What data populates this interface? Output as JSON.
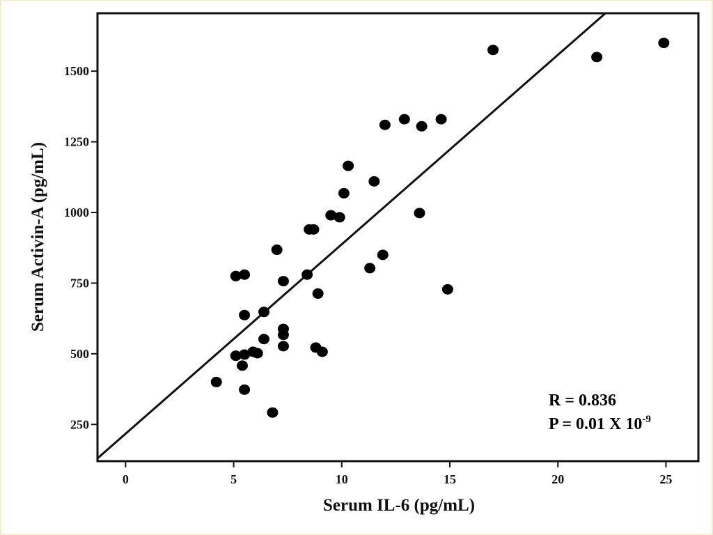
{
  "chart_data": {
    "type": "scatter",
    "xlabel": "Serum IL-6 (pg/mL)",
    "ylabel": "Serum Activin-A (pg/mL)",
    "xlim": [
      -1.3,
      26.5
    ],
    "ylim": [
      120,
      1705
    ],
    "x_ticks": [
      0,
      5,
      10,
      15,
      20,
      25
    ],
    "y_ticks": [
      250,
      500,
      750,
      1000,
      1250,
      1500
    ],
    "grid": false,
    "legend": "none",
    "points": [
      {
        "x": 4.2,
        "y": 400
      },
      {
        "x": 5.1,
        "y": 775
      },
      {
        "x": 5.1,
        "y": 493
      },
      {
        "x": 5.4,
        "y": 458
      },
      {
        "x": 5.5,
        "y": 780
      },
      {
        "x": 5.5,
        "y": 637
      },
      {
        "x": 5.5,
        "y": 373
      },
      {
        "x": 5.5,
        "y": 497
      },
      {
        "x": 5.9,
        "y": 507
      },
      {
        "x": 6.1,
        "y": 502
      },
      {
        "x": 6.4,
        "y": 648
      },
      {
        "x": 6.4,
        "y": 552
      },
      {
        "x": 6.8,
        "y": 292
      },
      {
        "x": 7.0,
        "y": 868
      },
      {
        "x": 7.3,
        "y": 757
      },
      {
        "x": 7.3,
        "y": 588
      },
      {
        "x": 7.3,
        "y": 567
      },
      {
        "x": 7.3,
        "y": 527
      },
      {
        "x": 8.4,
        "y": 780
      },
      {
        "x": 8.5,
        "y": 940
      },
      {
        "x": 8.7,
        "y": 940
      },
      {
        "x": 8.8,
        "y": 522
      },
      {
        "x": 8.9,
        "y": 713
      },
      {
        "x": 9.1,
        "y": 507
      },
      {
        "x": 9.5,
        "y": 990
      },
      {
        "x": 9.9,
        "y": 983
      },
      {
        "x": 10.1,
        "y": 1068
      },
      {
        "x": 10.3,
        "y": 1165
      },
      {
        "x": 11.3,
        "y": 803
      },
      {
        "x": 11.5,
        "y": 1110
      },
      {
        "x": 11.9,
        "y": 850
      },
      {
        "x": 12.0,
        "y": 1310
      },
      {
        "x": 12.9,
        "y": 1330
      },
      {
        "x": 13.6,
        "y": 998
      },
      {
        "x": 13.7,
        "y": 1305
      },
      {
        "x": 14.6,
        "y": 1330
      },
      {
        "x": 14.9,
        "y": 728
      },
      {
        "x": 17.0,
        "y": 1575
      },
      {
        "x": 21.8,
        "y": 1550
      },
      {
        "x": 24.9,
        "y": 1600
      }
    ],
    "fit_line": {
      "from": [
        -1.3,
        130
      ],
      "to": [
        22.2,
        1705
      ]
    },
    "annotation": {
      "r_text": "R = 0.836",
      "p_text": "P = 0.01 X 10",
      "p_exponent": "-9"
    }
  }
}
